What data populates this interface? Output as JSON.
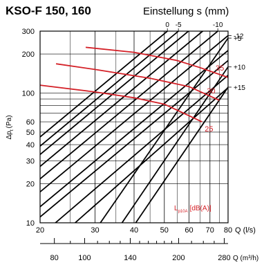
{
  "title": "KSO-F 150, 160",
  "setting_title": "Einstellung s (mm)",
  "chart_data": {
    "type": "line",
    "x_scale": "log",
    "y_scale": "log",
    "xlim": [
      20,
      80
    ],
    "ylim": [
      10,
      300
    ],
    "xlabel": "Q (l/s)",
    "ylabel": "Δp",
    "ylabel_sub": "t",
    "ylabel_unit": "(Pa)",
    "x_ticks": [
      20,
      30,
      40,
      50,
      60,
      70,
      80
    ],
    "y_ticks": [
      10,
      20,
      30,
      40,
      50,
      60,
      100,
      200,
      300
    ],
    "grid": true,
    "secondary_x": {
      "label": "Q (m³/h)",
      "ticks": [
        80,
        100,
        140,
        200,
        280
      ]
    },
    "setting_lines": [
      {
        "label": "-12",
        "points": [
          [
            20,
            17.3
          ],
          [
            80,
            277
          ]
        ]
      },
      {
        "label": "-10",
        "points": [
          [
            20,
            21.8
          ],
          [
            80,
            349
          ]
        ]
      },
      {
        "label": "-5",
        "points": [
          [
            20,
            39.0
          ],
          [
            80,
            624
          ]
        ]
      },
      {
        "label": "0",
        "points": [
          [
            20,
            45.9
          ],
          [
            80,
            734
          ]
        ]
      },
      {
        "label": "+5",
        "points": [
          [
            31.2,
            10
          ],
          [
            80,
            265
          ]
        ]
      },
      {
        "label": "+10",
        "points": [
          [
            36.6,
            10
          ],
          [
            80,
            159
          ]
        ]
      },
      {
        "label": "+15",
        "points": [
          [
            40.5,
            10
          ],
          [
            80,
            111
          ]
        ]
      },
      {
        "label": "",
        "points": [
          [
            20,
            13.3
          ],
          [
            80,
            213
          ]
        ]
      },
      {
        "label": "",
        "points": [
          [
            20,
            11.1
          ],
          [
            80,
            178
          ]
        ]
      },
      {
        "label": "",
        "points": [
          [
            22.4,
            10
          ],
          [
            80,
            137
          ]
        ]
      },
      {
        "label": "",
        "points": [
          [
            25.9,
            10
          ],
          [
            80,
            110
          ]
        ]
      },
      {
        "label": "",
        "points": [
          [
            20,
            27.2
          ],
          [
            80,
            436
          ]
        ]
      },
      {
        "label": "",
        "points": [
          [
            20,
            33.6
          ],
          [
            80,
            538
          ]
        ]
      }
    ],
    "sound_curves": [
      {
        "label": "35",
        "points": [
          [
            28,
            225
          ],
          [
            40,
            206
          ],
          [
            55,
            178
          ],
          [
            65,
            157
          ],
          [
            80,
            132
          ]
        ]
      },
      {
        "label": "30",
        "points": [
          [
            22.5,
            168
          ],
          [
            30,
            152
          ],
          [
            45,
            130
          ],
          [
            60,
            112
          ],
          [
            75,
            88
          ]
        ]
      },
      {
        "label": "25",
        "points": [
          [
            20,
            115
          ],
          [
            30,
            102
          ],
          [
            40,
            92
          ],
          [
            50,
            82
          ],
          [
            66,
            60
          ]
        ]
      }
    ],
    "sound_label": "L",
    "sound_label_sub": "p10A",
    "sound_label_unit": "[dB(A)]",
    "colors": {
      "setting": "#000000",
      "sound": "#d42027",
      "grid": "#000000"
    }
  }
}
